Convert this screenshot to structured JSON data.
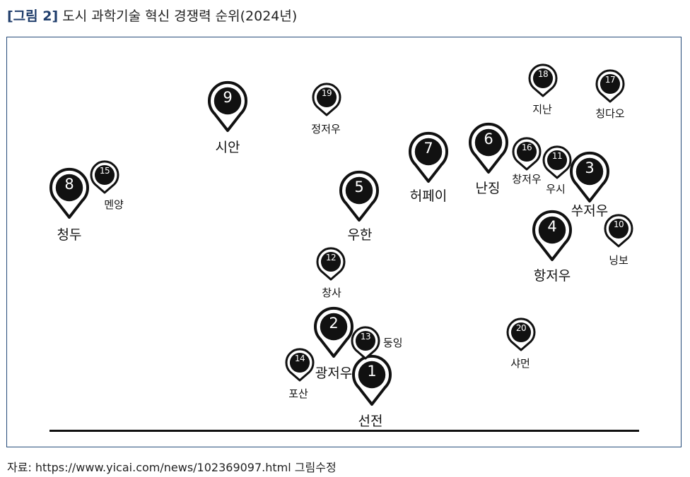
{
  "title": {
    "figure": "[그림 2]",
    "text": "도시 과학기술 혁신 경쟁력 순위(2024년)"
  },
  "source": "자료: https://www.yicai.com/news/102369097.html 그림수정",
  "cities": [
    {
      "rank": "1",
      "name": "선전"
    },
    {
      "rank": "2",
      "name": "광저우"
    },
    {
      "rank": "3",
      "name": "쑤저우"
    },
    {
      "rank": "4",
      "name": "항저우"
    },
    {
      "rank": "5",
      "name": "우한"
    },
    {
      "rank": "6",
      "name": "난징"
    },
    {
      "rank": "7",
      "name": "허페이"
    },
    {
      "rank": "8",
      "name": "청두"
    },
    {
      "rank": "9",
      "name": "시안"
    },
    {
      "rank": "10",
      "name": "닝보"
    },
    {
      "rank": "11",
      "name": "우시"
    },
    {
      "rank": "12",
      "name": "창사"
    },
    {
      "rank": "13",
      "name": "둥잉"
    },
    {
      "rank": "14",
      "name": "포산"
    },
    {
      "rank": "15",
      "name": "멘양"
    },
    {
      "rank": "16",
      "name": "창저우"
    },
    {
      "rank": "17",
      "name": "칭다오"
    },
    {
      "rank": "18",
      "name": "지난"
    },
    {
      "rank": "19",
      "name": "정저우"
    },
    {
      "rank": "20",
      "name": "샤먼"
    }
  ]
}
